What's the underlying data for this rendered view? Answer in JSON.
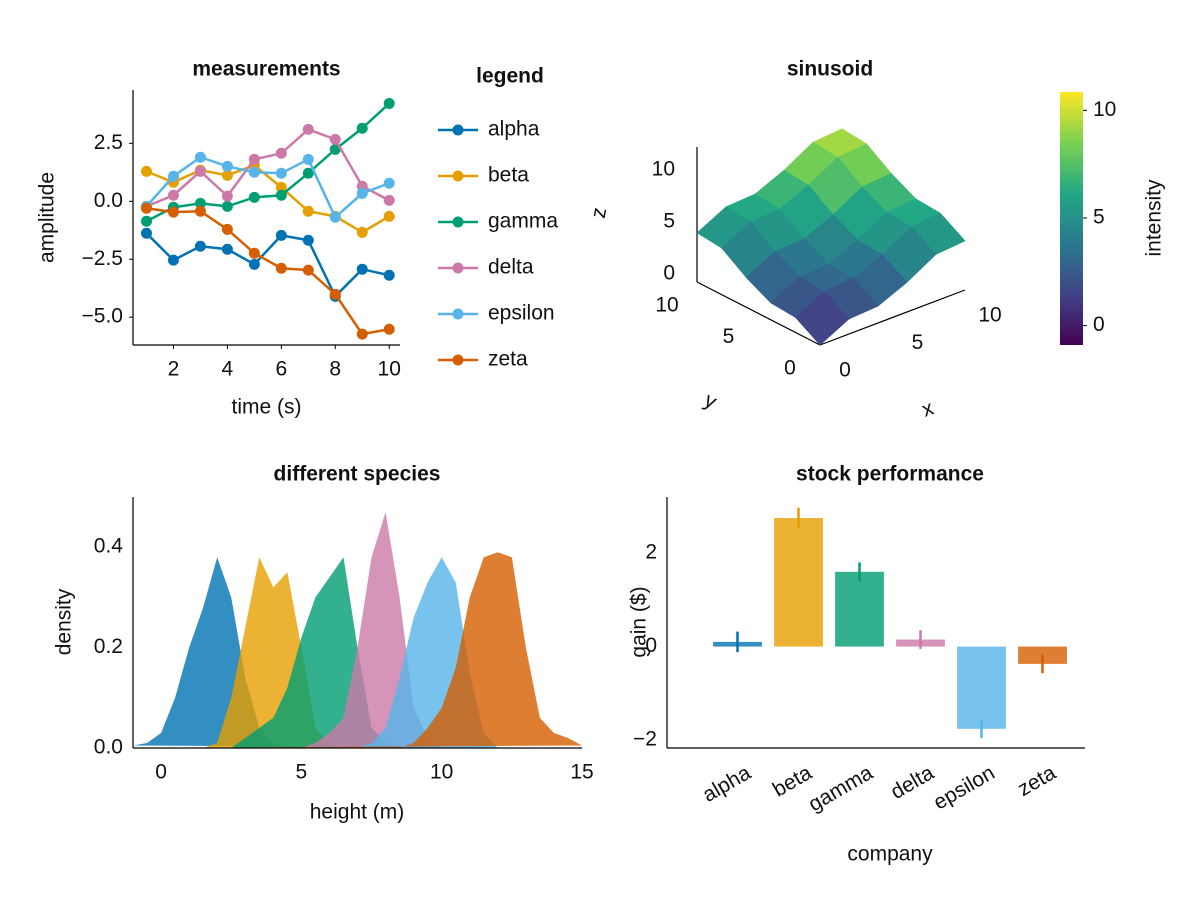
{
  "chart_data": [
    {
      "type": "line",
      "title": "measurements",
      "xlabel": "time (s)",
      "ylabel": "amplitude",
      "x": [
        1,
        2,
        3,
        4,
        5,
        6,
        7,
        8,
        9,
        10
      ],
      "series": [
        {
          "name": "alpha",
          "color": "#0072B2",
          "values": [
            -1.38,
            -2.54,
            -1.94,
            -2.07,
            -2.72,
            -1.47,
            -1.68,
            -4.1,
            -2.93,
            -3.19
          ]
        },
        {
          "name": "beta",
          "color": "#E69F00",
          "values": [
            1.29,
            0.82,
            1.34,
            1.12,
            1.55,
            0.6,
            -0.43,
            -0.65,
            -1.34,
            -0.65
          ]
        },
        {
          "name": "gamma",
          "color": "#009E73",
          "values": [
            -0.86,
            -0.26,
            -0.09,
            -0.22,
            0.17,
            0.26,
            1.21,
            2.24,
            3.15,
            4.22
          ]
        },
        {
          "name": "delta",
          "color": "#CC79A7",
          "values": [
            -0.22,
            0.26,
            1.29,
            0.22,
            1.81,
            2.07,
            3.1,
            2.67,
            0.65,
            0.04
          ]
        },
        {
          "name": "epsilon",
          "color": "#56B4E9",
          "values": [
            -0.22,
            1.08,
            1.9,
            1.51,
            1.25,
            1.21,
            1.81,
            -0.69,
            0.34,
            0.78
          ]
        },
        {
          "name": "zeta",
          "color": "#D55E00",
          "values": [
            -0.3,
            -0.47,
            -0.43,
            -1.21,
            -2.24,
            -2.89,
            -2.97,
            -4.01,
            -5.73,
            -5.52
          ]
        }
      ],
      "xlim": [
        0.5,
        10.4
      ],
      "ylim": [
        -6.2,
        4.8
      ],
      "xticks": [
        2,
        4,
        6,
        8,
        10
      ],
      "yticks": [
        {
          "value": -5,
          "label": "−5.0"
        },
        {
          "value": -2.5,
          "label": "−2.5"
        },
        {
          "value": 0,
          "label": "0.0"
        },
        2.5
      ],
      "legend_title": "legend",
      "legend_position": "right"
    },
    {
      "type": "surface",
      "title": "sinusoid",
      "xlabel": "x",
      "ylabel": "y",
      "zlabel": "z",
      "x": [
        0,
        2,
        4,
        6,
        8,
        10
      ],
      "y": [
        0,
        2,
        4,
        6,
        8,
        10
      ],
      "z": [
        [
          0,
          1.45,
          1.62,
          2.86,
          4.49,
          4.73
        ],
        [
          1.45,
          2.9,
          3.07,
          4.31,
          5.94,
          6.18
        ],
        [
          1.62,
          3.07,
          3.24,
          4.48,
          6.11,
          6.35
        ],
        [
          2.86,
          4.31,
          4.48,
          5.72,
          7.35,
          7.59
        ],
        [
          4.49,
          5.94,
          6.11,
          7.35,
          8.98,
          9.22
        ],
        [
          4.73,
          6.18,
          6.35,
          7.59,
          9.22,
          9.46
        ]
      ],
      "xlim": [
        0,
        10
      ],
      "ylim": [
        0,
        10
      ],
      "zlim": [
        0,
        13
      ],
      "xticks": [
        0,
        5,
        10
      ],
      "yticks": [
        0,
        5,
        10
      ],
      "zticks": [
        0,
        5,
        10
      ],
      "colormap": [
        "#440154",
        "#414487",
        "#2a788e",
        "#22a884",
        "#7ad151",
        "#fde725"
      ],
      "colorbar": {
        "label": "intensity",
        "lim": [
          -0.9,
          10.85
        ],
        "ticks": [
          0,
          5,
          10
        ]
      }
    },
    {
      "type": "density",
      "title": "different species",
      "xlabel": "height (m)",
      "ylabel": "density",
      "x": [
        -1,
        -0.5,
        0,
        0.5,
        1,
        1.5,
        2,
        2.5,
        3,
        3.5,
        4,
        4.5,
        5,
        5.5,
        6,
        6.5,
        7,
        7.5,
        8,
        8.5,
        9,
        9.5,
        10,
        10.5,
        11,
        11.5,
        12,
        12.5,
        13,
        13.5,
        14,
        14.5,
        15
      ],
      "series": [
        {
          "color": "#0072B2",
          "values": [
            0.005,
            0.01,
            0.03,
            0.1,
            0.2,
            0.28,
            0.38,
            0.3,
            0.14,
            0.04,
            0.01,
            0,
            0,
            0,
            0,
            0,
            0,
            0,
            0,
            0,
            0,
            0,
            0,
            0,
            0,
            0,
            0,
            0,
            0,
            0,
            0,
            0,
            0
          ]
        },
        {
          "color": "#E69F00",
          "values": [
            0,
            0,
            0,
            0,
            0,
            0,
            0.01,
            0.1,
            0.24,
            0.38,
            0.32,
            0.35,
            0.2,
            0.04,
            0.01,
            0,
            0,
            0,
            0,
            0,
            0,
            0,
            0,
            0,
            0,
            0,
            0,
            0,
            0,
            0,
            0,
            0,
            0
          ]
        },
        {
          "color": "#009E73",
          "values": [
            0,
            0,
            0,
            0,
            0,
            0,
            0,
            0,
            0.02,
            0.04,
            0.06,
            0.12,
            0.22,
            0.3,
            0.34,
            0.38,
            0.2,
            0.04,
            0.01,
            0,
            0,
            0,
            0,
            0,
            0,
            0,
            0,
            0,
            0,
            0,
            0,
            0,
            0
          ]
        },
        {
          "color": "#CC79A7",
          "values": [
            0,
            0,
            0,
            0,
            0,
            0,
            0,
            0,
            0,
            0,
            0,
            0,
            0,
            0.01,
            0.03,
            0.06,
            0.2,
            0.38,
            0.47,
            0.3,
            0.08,
            0.02,
            0,
            0,
            0,
            0,
            0,
            0,
            0,
            0,
            0,
            0,
            0
          ]
        },
        {
          "color": "#56B4E9",
          "values": [
            0,
            0,
            0,
            0,
            0,
            0,
            0,
            0,
            0,
            0,
            0,
            0,
            0,
            0,
            0,
            0,
            0,
            0.01,
            0.04,
            0.14,
            0.26,
            0.33,
            0.38,
            0.33,
            0.15,
            0.03,
            0,
            0,
            0,
            0,
            0,
            0,
            0
          ]
        },
        {
          "color": "#D55E00",
          "values": [
            0,
            0,
            0,
            0,
            0,
            0,
            0,
            0,
            0,
            0,
            0,
            0,
            0,
            0,
            0,
            0,
            0,
            0,
            0,
            0,
            0.01,
            0.04,
            0.08,
            0.16,
            0.3,
            0.38,
            0.39,
            0.38,
            0.2,
            0.06,
            0.03,
            0.02,
            0.005
          ]
        }
      ],
      "xlim": [
        -1,
        15
      ],
      "ylim": [
        0,
        0.5
      ],
      "xticks": [
        0,
        5,
        10,
        15
      ],
      "yticks": [
        {
          "value": 0,
          "label": "0.0"
        },
        0.2,
        0.4
      ]
    },
    {
      "type": "bar",
      "title": "stock performance",
      "xlabel": "company",
      "ylabel": "gain ($)",
      "categories": [
        "alpha",
        "beta",
        "gamma",
        "delta",
        "epsilon",
        "zeta"
      ],
      "values": [
        0.1,
        2.75,
        1.6,
        0.15,
        -1.76,
        -0.37
      ],
      "errors": [
        0.22,
        0.22,
        0.2,
        0.2,
        0.2,
        0.2
      ],
      "colors": [
        "#0072B2",
        "#E69F00",
        "#009E73",
        "#CC79A7",
        "#56B4E9",
        "#D55E00"
      ],
      "ylim": [
        -2.17,
        3.2
      ],
      "yticks": [
        {
          "value": -2,
          "label": "−2"
        },
        0,
        2
      ]
    }
  ]
}
